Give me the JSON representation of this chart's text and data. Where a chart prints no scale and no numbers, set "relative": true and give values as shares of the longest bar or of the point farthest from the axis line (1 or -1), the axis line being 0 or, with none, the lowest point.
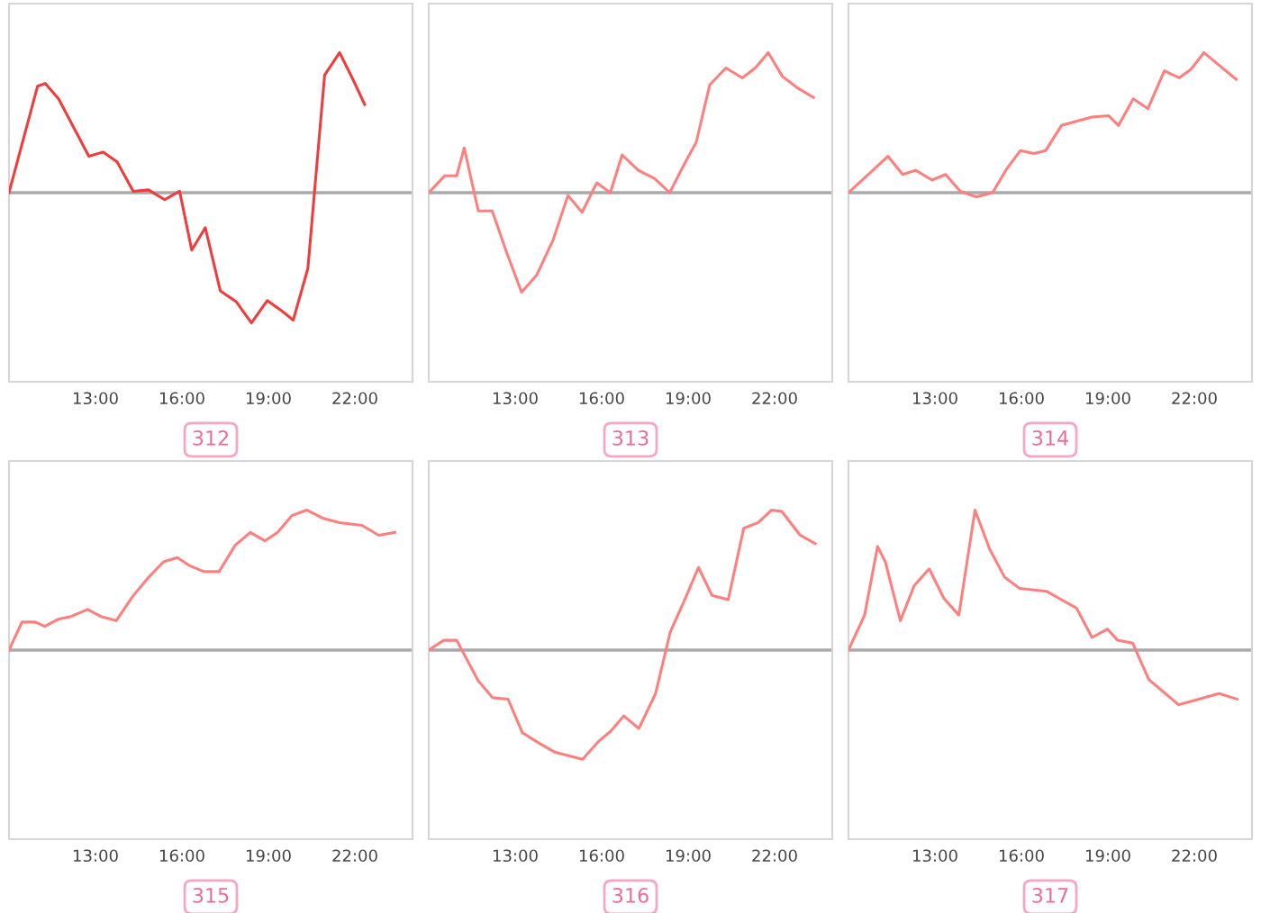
{
  "chart_data": [
    {
      "type": "line",
      "xlabel": "312",
      "relative": true,
      "marker": "none",
      "line_style": "solid",
      "xlim": [
        10,
        24
      ],
      "xticks": [
        {
          "value": 13,
          "label": "13:00"
        },
        {
          "value": 16,
          "label": "16:00"
        },
        {
          "value": 19,
          "label": "19:00"
        },
        {
          "value": 22,
          "label": "22:00"
        }
      ],
      "x": [
        10.0,
        10.99,
        11.26,
        11.72,
        12.77,
        13.27,
        13.75,
        14.31,
        14.84,
        15.4,
        15.92,
        16.34,
        16.81,
        17.33,
        17.89,
        18.41,
        18.96,
        19.44,
        19.86,
        20.37,
        20.95,
        21.47,
        21.93,
        22.34
      ],
      "series": [
        {
          "color": "#f03c3c",
          "values": [
            0,
            0.76,
            0.78,
            0.67,
            0.26,
            0.29,
            0.22,
            0.01,
            0.02,
            -0.05,
            0.01,
            -0.41,
            -0.25,
            -0.7,
            -0.78,
            -0.93,
            -0.77,
            -0.84,
            -0.91,
            -0.54,
            0.84,
            1,
            0.81,
            0.63
          ]
        }
      ]
    },
    {
      "type": "line",
      "xlabel": "313",
      "relative": true,
      "marker": "none",
      "line_style": "solid",
      "xlim": [
        10,
        24
      ],
      "xticks": [
        {
          "value": 13,
          "label": "13:00"
        },
        {
          "value": 16,
          "label": "16:00"
        },
        {
          "value": 19,
          "label": "19:00"
        },
        {
          "value": 22,
          "label": "22:00"
        }
      ],
      "x": [
        10.0,
        10.55,
        10.97,
        11.23,
        11.72,
        12.2,
        12.71,
        13.22,
        13.74,
        14.31,
        14.83,
        15.32,
        15.83,
        16.3,
        16.71,
        17.27,
        17.84,
        18.36,
        18.83,
        19.28,
        19.75,
        20.31,
        20.88,
        21.33,
        21.78,
        22.27,
        22.78,
        23.35
      ],
      "series": [
        {
          "color": "#ff7f7f",
          "values": [
            0,
            0.12,
            0.12,
            0.32,
            -0.13,
            -0.13,
            -0.43,
            -0.71,
            -0.59,
            -0.34,
            -0.02,
            -0.14,
            0.07,
            0,
            0.27,
            0.16,
            0.1,
            0,
            0.19,
            0.36,
            0.77,
            0.89,
            0.82,
            0.89,
            1,
            0.83,
            0.75,
            0.68
          ]
        }
      ]
    },
    {
      "type": "line",
      "xlabel": "314",
      "relative": true,
      "marker": "none",
      "line_style": "solid",
      "xlim": [
        10,
        24
      ],
      "xticks": [
        {
          "value": 13,
          "label": "13:00"
        },
        {
          "value": 16,
          "label": "16:00"
        },
        {
          "value": 19,
          "label": "19:00"
        },
        {
          "value": 22,
          "label": "22:00"
        }
      ],
      "x": [
        10.0,
        11.37,
        11.88,
        12.33,
        12.9,
        13.37,
        13.88,
        14.43,
        15.0,
        15.49,
        15.96,
        16.43,
        16.84,
        17.39,
        17.9,
        18.45,
        19.02,
        19.37,
        19.88,
        20.39,
        20.96,
        21.47,
        21.88,
        22.33,
        22.8,
        23.45
      ],
      "series": [
        {
          "color": "#ff7f7f",
          "values": [
            0,
            0.26,
            0.13,
            0.16,
            0.09,
            0.13,
            0.01,
            -0.03,
            0,
            0.17,
            0.3,
            0.28,
            0.3,
            0.48,
            0.51,
            0.54,
            0.55,
            0.48,
            0.67,
            0.6,
            0.87,
            0.82,
            0.88,
            1,
            0.92,
            0.81
          ]
        }
      ]
    },
    {
      "type": "line",
      "xlabel": "315",
      "relative": true,
      "marker": "none",
      "line_style": "solid",
      "xlim": [
        10,
        24
      ],
      "xticks": [
        {
          "value": 13,
          "label": "13:00"
        },
        {
          "value": 16,
          "label": "16:00"
        },
        {
          "value": 19,
          "label": "19:00"
        },
        {
          "value": 22,
          "label": "22:00"
        }
      ],
      "x": [
        10.0,
        10.45,
        10.91,
        11.24,
        11.7,
        12.15,
        12.73,
        13.19,
        13.72,
        14.28,
        14.8,
        15.36,
        15.84,
        16.29,
        16.77,
        17.29,
        17.85,
        18.37,
        18.88,
        19.32,
        19.81,
        20.33,
        20.91,
        21.47,
        22.25,
        22.83,
        23.39
      ],
      "series": [
        {
          "color": "#ff7f7f",
          "values": [
            0,
            0.2,
            0.2,
            0.17,
            0.22,
            0.24,
            0.29,
            0.24,
            0.21,
            0.38,
            0.51,
            0.63,
            0.66,
            0.6,
            0.56,
            0.56,
            0.75,
            0.84,
            0.78,
            0.84,
            0.96,
            1,
            0.94,
            0.91,
            0.89,
            0.82,
            0.84
          ]
        }
      ]
    },
    {
      "type": "line",
      "xlabel": "316",
      "relative": true,
      "marker": "none",
      "line_style": "solid",
      "xlim": [
        10,
        24
      ],
      "xticks": [
        {
          "value": 13,
          "label": "13:00"
        },
        {
          "value": 16,
          "label": "16:00"
        },
        {
          "value": 19,
          "label": "19:00"
        },
        {
          "value": 22,
          "label": "22:00"
        }
      ],
      "x": [
        10.0,
        10.52,
        10.97,
        11.72,
        12.22,
        12.75,
        13.25,
        13.79,
        14.39,
        15.34,
        15.9,
        16.31,
        16.77,
        17.29,
        17.87,
        18.38,
        18.86,
        19.36,
        19.83,
        20.39,
        20.93,
        21.43,
        21.9,
        22.25,
        22.89,
        23.41
      ],
      "series": [
        {
          "color": "#ff7f7f",
          "values": [
            0,
            0.07,
            0.07,
            -0.22,
            -0.34,
            -0.35,
            -0.59,
            -0.66,
            -0.73,
            -0.78,
            -0.65,
            -0.58,
            -0.47,
            -0.56,
            -0.31,
            0.13,
            0.35,
            0.59,
            0.39,
            0.36,
            0.87,
            0.91,
            1,
            0.99,
            0.82,
            0.76
          ]
        }
      ]
    },
    {
      "type": "line",
      "xlabel": "317",
      "relative": true,
      "marker": "none",
      "line_style": "solid",
      "xlim": [
        10,
        24
      ],
      "xticks": [
        {
          "value": 13,
          "label": "13:00"
        },
        {
          "value": 16,
          "label": "16:00"
        },
        {
          "value": 19,
          "label": "19:00"
        },
        {
          "value": 22,
          "label": "22:00"
        }
      ],
      "x": [
        10.0,
        10.56,
        11.01,
        11.28,
        11.8,
        12.28,
        12.8,
        13.31,
        13.83,
        14.39,
        14.9,
        15.42,
        15.94,
        16.87,
        17.39,
        17.91,
        18.45,
        18.99,
        19.34,
        19.86,
        20.42,
        21.45,
        22.86,
        23.48
      ],
      "series": [
        {
          "color": "#ff7f7f",
          "values": [
            0,
            0.25,
            0.74,
            0.63,
            0.21,
            0.46,
            0.58,
            0.37,
            0.25,
            1,
            0.72,
            0.52,
            0.44,
            0.42,
            0.36,
            0.3,
            0.09,
            0.15,
            0.07,
            0.05,
            -0.21,
            -0.39,
            -0.31,
            -0.35
          ]
        }
      ]
    }
  ]
}
